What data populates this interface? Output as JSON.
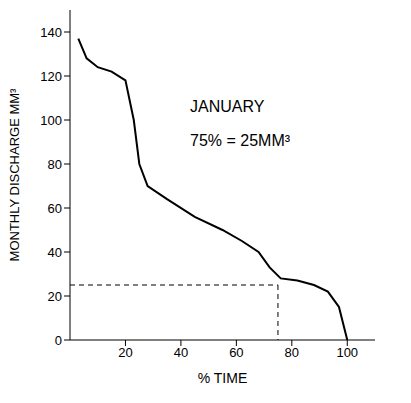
{
  "chart_data": {
    "type": "line",
    "x_label": "% TIME",
    "y_label": "MONTHLY DISCHARGE MM³",
    "annotations": [
      "JANUARY",
      "75% = 25MM³"
    ],
    "x": [
      3,
      6,
      10,
      15,
      20,
      23,
      25,
      28,
      35,
      45,
      55,
      62,
      68,
      72,
      76,
      82,
      88,
      93,
      97,
      100
    ],
    "values": [
      137,
      128,
      124,
      122,
      118,
      100,
      80,
      70,
      64,
      56,
      50,
      45,
      40,
      33,
      28,
      27,
      25,
      22,
      15,
      0
    ],
    "color": "#000000",
    "reference_point": {
      "x": 75,
      "y": 25
    },
    "xlim": [
      0,
      110
    ],
    "xticks": [
      20,
      40,
      60,
      80,
      100
    ],
    "ylim": [
      0,
      150
    ],
    "yticks": [
      0,
      20,
      40,
      60,
      80,
      100,
      120,
      140
    ],
    "grid": false,
    "line_style": "solid"
  }
}
